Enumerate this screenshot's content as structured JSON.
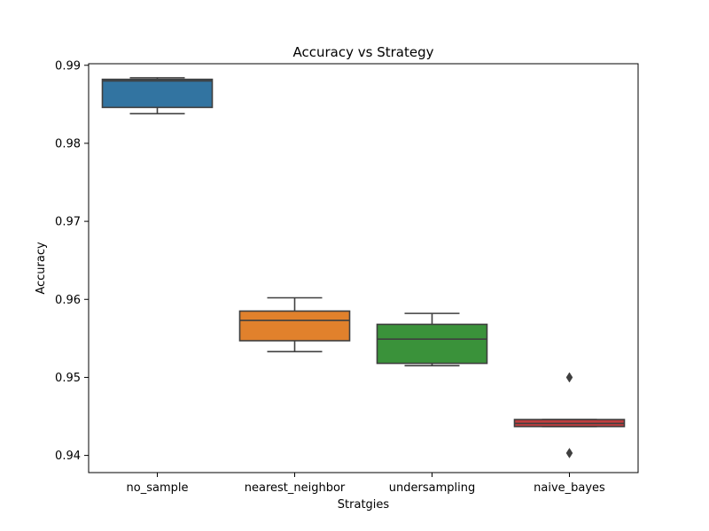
{
  "chart_data": {
    "type": "box",
    "title": "Accuracy vs Strategy",
    "xlabel": "Stratgies",
    "ylabel": "Accuracy",
    "ylim": [
      0.9378,
      0.9902
    ],
    "yticks": [
      0.94,
      0.95,
      0.96,
      0.97,
      0.98,
      0.99
    ],
    "ytick_labels": [
      "0.94",
      "0.95",
      "0.96",
      "0.97",
      "0.98",
      "0.99"
    ],
    "grid": false,
    "categories": [
      "no_sample",
      "nearest_neighbor",
      "undersampling",
      "naive_bayes"
    ],
    "boxes": [
      {
        "category": "no_sample",
        "color": "#3274a1",
        "whisker_low": 0.9838,
        "q1": 0.9846,
        "median": 0.988,
        "q3": 0.9882,
        "whisker_high": 0.9884,
        "outliers": []
      },
      {
        "category": "nearest_neighbor",
        "color": "#e1812c",
        "whisker_low": 0.9533,
        "q1": 0.9547,
        "median": 0.9573,
        "q3": 0.9585,
        "whisker_high": 0.9602,
        "outliers": []
      },
      {
        "category": "undersampling",
        "color": "#3a923a",
        "whisker_low": 0.9515,
        "q1": 0.9518,
        "median": 0.9549,
        "q3": 0.9568,
        "whisker_high": 0.9582,
        "outliers": []
      },
      {
        "category": "naive_bayes",
        "color": "#c03d3e",
        "whisker_low": 0.9437,
        "q1": 0.9437,
        "median": 0.9441,
        "q3": 0.9446,
        "whisker_high": 0.9446,
        "outliers": [
          0.95,
          0.9403
        ]
      }
    ]
  }
}
